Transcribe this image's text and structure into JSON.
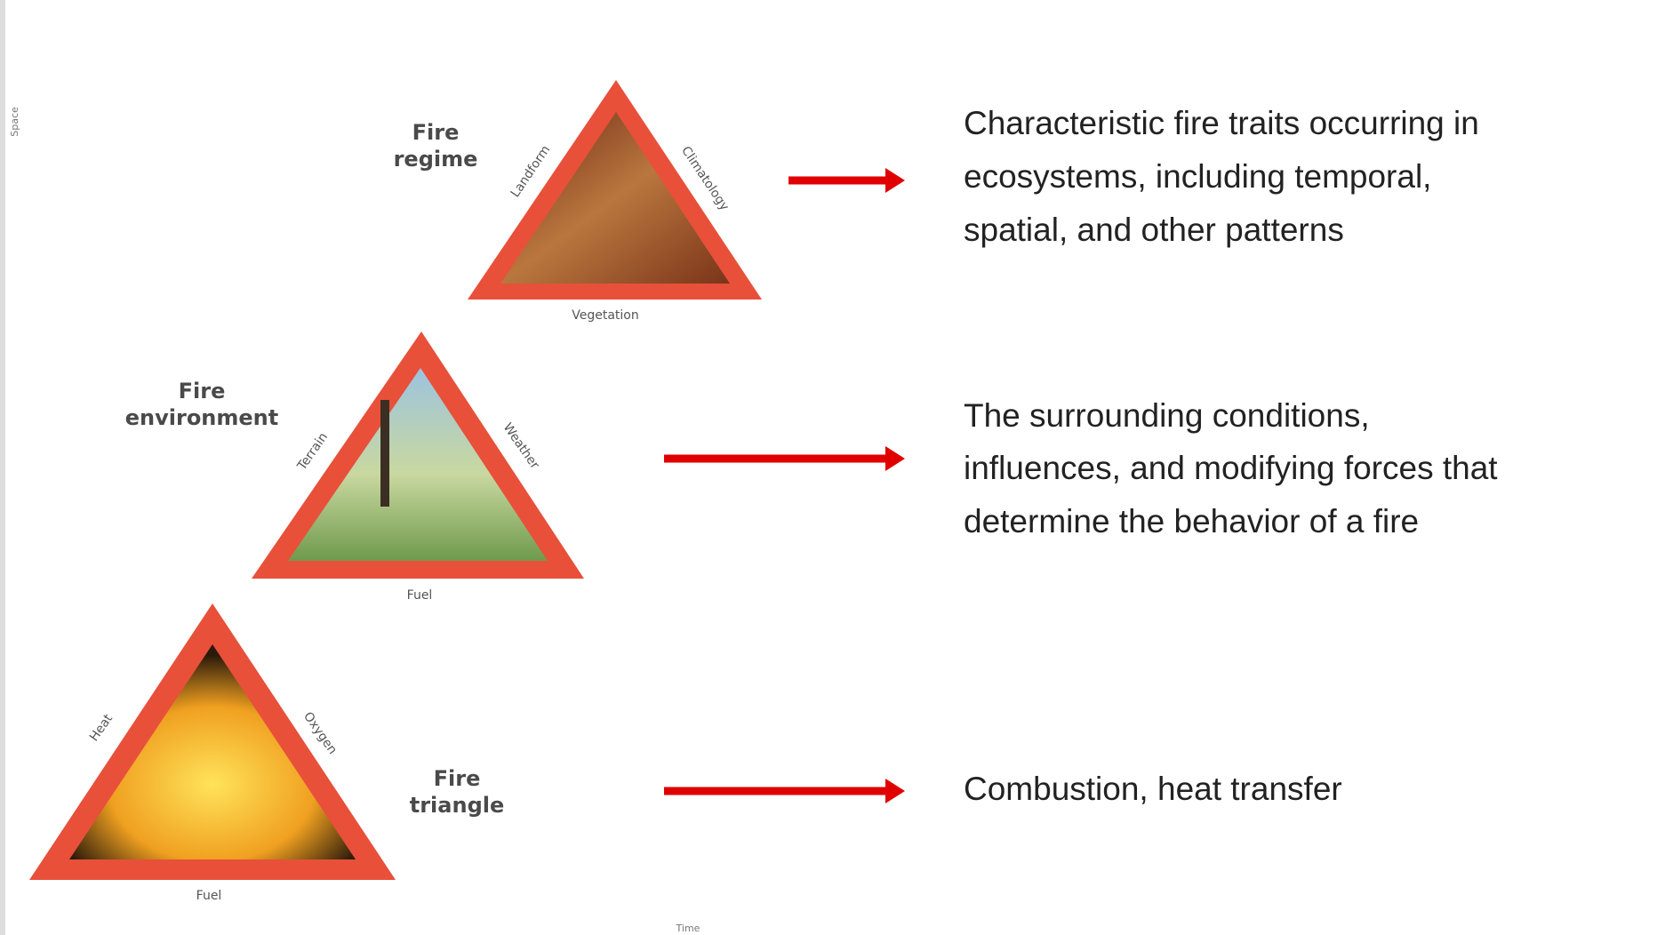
{
  "axes": {
    "vertical": "Space",
    "horizontal": "Time"
  },
  "levels": [
    {
      "label": [
        "Fire",
        "regime"
      ],
      "sides": {
        "left": "Landform",
        "right": "Climatology",
        "bottom": "Vegetation"
      },
      "description": [
        "Characteristic fire traits occurring in",
        "ecosystems, including temporal,",
        "spatial, and other patterns"
      ]
    },
    {
      "label": [
        "Fire",
        "environment"
      ],
      "sides": {
        "left": "Terrain",
        "right": "Weather",
        "bottom": "Fuel"
      },
      "description": [
        "The surrounding conditions,",
        "influences, and modifying forces that",
        "determine the behavior of a fire"
      ]
    },
    {
      "label": [
        "Fire",
        "triangle"
      ],
      "sides": {
        "left": "Heat",
        "right": "Oxygen",
        "bottom": "Fuel"
      },
      "description": [
        "Combustion, heat transfer"
      ]
    }
  ]
}
